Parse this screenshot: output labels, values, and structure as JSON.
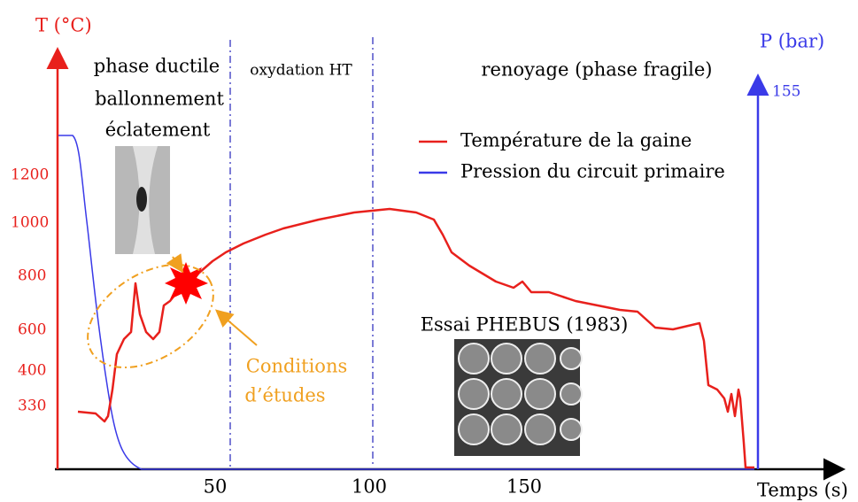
{
  "axes": {
    "y_left": {
      "title": "T (°C)",
      "ticks": [
        "1200",
        "1000",
        "800",
        "600",
        "400",
        "330"
      ]
    },
    "y_right": {
      "title": "P (bar)",
      "ticks": [
        "155"
      ]
    },
    "x": {
      "title": "Temps (s)",
      "ticks": [
        "50",
        "100",
        "150"
      ]
    }
  },
  "phases": [
    "phase ductile",
    "ballonnement",
    "éclatement",
    "oxydation HT",
    "renoyage (phase fragile)"
  ],
  "legend": [
    "Température de la gaine",
    "Pression du circuit primaire"
  ],
  "annotations": {
    "test": "Essai PHEBUS (1983)",
    "conditions": [
      "Conditions",
      "d’études"
    ]
  }
}
